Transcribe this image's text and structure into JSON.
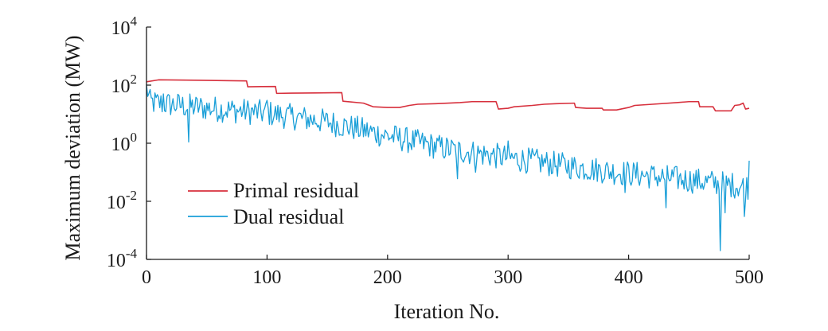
{
  "chart_data": {
    "type": "line",
    "xlabel": "Iteration No.",
    "ylabel": "Maximum deviation (MW)",
    "xlim": [
      0,
      500
    ],
    "ylim": [
      0.0001,
      10000
    ],
    "yscale": "log",
    "x_ticks": [
      "0",
      "100",
      "200",
      "300",
      "400",
      "500"
    ],
    "y_ticks": [
      {
        "base": "10",
        "exp": "4"
      },
      {
        "base": "10",
        "exp": "2"
      },
      {
        "base": "10",
        "exp": "0"
      },
      {
        "base": "10",
        "exp": "-2"
      },
      {
        "base": "10",
        "exp": "-4"
      }
    ],
    "grid": false,
    "legend_position": "lower-left",
    "series": [
      {
        "name": "Primal residual",
        "color": "#d7303d",
        "points": [
          [
            0,
            130
          ],
          [
            10,
            152
          ],
          [
            40,
            148
          ],
          [
            70,
            142
          ],
          [
            83,
            140
          ],
          [
            84,
            88
          ],
          [
            95,
            89
          ],
          [
            107,
            90
          ],
          [
            108,
            52
          ],
          [
            120,
            53
          ],
          [
            140,
            54
          ],
          [
            162,
            55
          ],
          [
            163,
            28
          ],
          [
            180,
            24
          ],
          [
            188,
            18
          ],
          [
            200,
            17
          ],
          [
            210,
            17
          ],
          [
            218,
            20
          ],
          [
            225,
            22
          ],
          [
            240,
            23
          ],
          [
            260,
            25
          ],
          [
            270,
            27
          ],
          [
            290,
            27
          ],
          [
            292,
            15
          ],
          [
            300,
            16
          ],
          [
            305,
            18
          ],
          [
            320,
            20
          ],
          [
            330,
            22
          ],
          [
            340,
            23
          ],
          [
            355,
            24
          ],
          [
            356,
            17
          ],
          [
            365,
            16
          ],
          [
            378,
            16
          ],
          [
            379,
            14
          ],
          [
            390,
            14
          ],
          [
            400,
            17
          ],
          [
            405,
            20
          ],
          [
            420,
            22
          ],
          [
            440,
            25
          ],
          [
            450,
            27
          ],
          [
            458,
            27
          ],
          [
            459,
            18
          ],
          [
            470,
            18
          ],
          [
            472,
            13
          ],
          [
            485,
            13
          ],
          [
            488,
            20
          ],
          [
            492,
            21
          ],
          [
            495,
            24
          ],
          [
            497,
            15
          ],
          [
            500,
            16
          ]
        ]
      },
      {
        "name": "Dual residual",
        "color": "#1a9fd8",
        "start": 106,
        "anchors": [
          [
            0,
            106
          ],
          [
            3,
            28
          ],
          [
            50,
            18
          ],
          [
            100,
            12
          ],
          [
            150,
            6
          ],
          [
            200,
            2
          ],
          [
            250,
            0.7
          ],
          [
            300,
            0.35
          ],
          [
            350,
            0.18
          ],
          [
            400,
            0.1
          ],
          [
            450,
            0.06
          ],
          [
            500,
            0.035
          ]
        ],
        "spikes": [
          [
            35,
            1.1
          ],
          [
            258,
            0.06
          ],
          [
            273,
            0.1
          ],
          [
            397,
            0.02
          ],
          [
            431,
            0.006
          ],
          [
            476,
            0.0002
          ],
          [
            480,
            0.004
          ],
          [
            496,
            0.003
          ]
        ],
        "peaks": [
          [
            14,
            50
          ],
          [
            100,
            30
          ],
          [
            300,
            1.2
          ],
          [
            500,
            0.25
          ]
        ],
        "n_points": 500
      }
    ]
  }
}
